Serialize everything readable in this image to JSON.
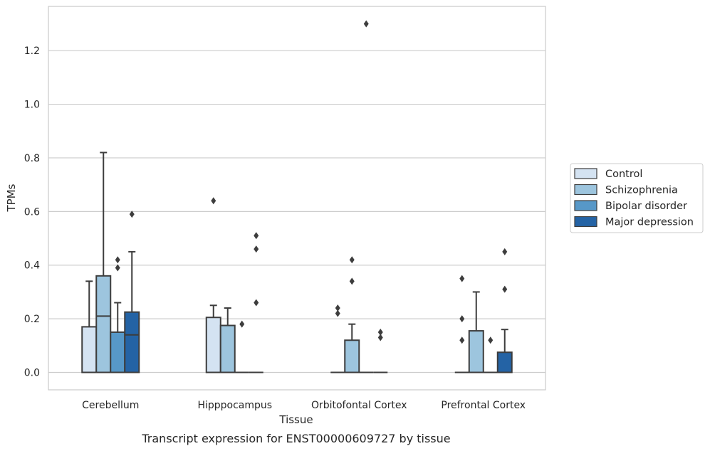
{
  "chart_data": {
    "type": "box",
    "xlabel": "Tissue",
    "ylabel": "TPMs",
    "caption": "Transcript expression for ENST00000609727 by tissue",
    "ylim": [
      -0.065,
      1.365
    ],
    "yticks": [
      0.0,
      0.2,
      0.4,
      0.6,
      0.8,
      1.0,
      1.2
    ],
    "ytick_labels": [
      "0.0",
      "0.2",
      "0.4",
      "0.6",
      "0.8",
      "1.0",
      "1.2"
    ],
    "grid": "horizontal",
    "legend_position": "right",
    "categories": [
      "Cerebellum",
      "Hipppocampus",
      "Orbitofontal Cortex",
      "Prefrontal Cortex"
    ],
    "series": [
      {
        "name": "Control",
        "color": "#d4e3f2"
      },
      {
        "name": "Schizophrenia",
        "color": "#9dc5de"
      },
      {
        "name": "Bipolar disorder",
        "color": "#5798c8"
      },
      {
        "name": "Major depression",
        "color": "#2463a5"
      }
    ],
    "boxes": [
      [
        {
          "q1": 0.0,
          "median": 0.0,
          "q3": 0.17,
          "whisker_low": 0.0,
          "whisker_high": 0.34,
          "outliers": []
        },
        {
          "q1": 0.0,
          "median": 0.21,
          "q3": 0.36,
          "whisker_low": 0.0,
          "whisker_high": 0.82,
          "outliers": []
        },
        {
          "q1": 0.0,
          "median": 0.0,
          "q3": 0.15,
          "whisker_low": 0.0,
          "whisker_high": 0.26,
          "outliers": [
            0.39,
            0.42
          ]
        },
        {
          "q1": 0.0,
          "median": 0.14,
          "q3": 0.225,
          "whisker_low": 0.0,
          "whisker_high": 0.45,
          "outliers": [
            0.59
          ]
        }
      ],
      [
        {
          "q1": 0.0,
          "median": 0.0,
          "q3": 0.205,
          "whisker_low": 0.0,
          "whisker_high": 0.25,
          "outliers": [
            0.64
          ]
        },
        {
          "q1": 0.0,
          "median": 0.0,
          "q3": 0.175,
          "whisker_low": 0.0,
          "whisker_high": 0.24,
          "outliers": []
        },
        {
          "q1": 0.0,
          "median": 0.0,
          "q3": 0.0,
          "whisker_low": 0.0,
          "whisker_high": 0.0,
          "outliers": [
            0.18
          ]
        },
        {
          "q1": 0.0,
          "median": 0.0,
          "q3": 0.0,
          "whisker_low": 0.0,
          "whisker_high": 0.0,
          "outliers": [
            0.26,
            0.46,
            0.51
          ]
        }
      ],
      [
        {
          "q1": 0.0,
          "median": 0.0,
          "q3": 0.0,
          "whisker_low": 0.0,
          "whisker_high": 0.0,
          "outliers": [
            0.22,
            0.24
          ]
        },
        {
          "q1": 0.0,
          "median": 0.0,
          "q3": 0.12,
          "whisker_low": 0.0,
          "whisker_high": 0.18,
          "outliers": [
            0.34,
            0.42
          ]
        },
        {
          "q1": 0.0,
          "median": 0.0,
          "q3": 0.0,
          "whisker_low": 0.0,
          "whisker_high": 0.0,
          "outliers": [
            1.3
          ]
        },
        {
          "q1": 0.0,
          "median": 0.0,
          "q3": 0.0,
          "whisker_low": 0.0,
          "whisker_high": 0.0,
          "outliers": [
            0.13,
            0.15
          ]
        }
      ],
      [
        {
          "q1": 0.0,
          "median": 0.0,
          "q3": 0.0,
          "whisker_low": 0.0,
          "whisker_high": 0.0,
          "outliers": [
            0.12,
            0.2,
            0.35
          ]
        },
        {
          "q1": 0.0,
          "median": 0.0,
          "q3": 0.155,
          "whisker_low": 0.0,
          "whisker_high": 0.3,
          "outliers": []
        },
        {
          "q1": 0.0,
          "median": 0.0,
          "q3": 0.0,
          "whisker_low": 0.0,
          "whisker_high": 0.0,
          "outliers": [
            0.12
          ]
        },
        {
          "q1": 0.0,
          "median": 0.0,
          "q3": 0.075,
          "whisker_low": 0.0,
          "whisker_high": 0.16,
          "outliers": [
            0.31,
            0.45
          ]
        }
      ]
    ]
  }
}
